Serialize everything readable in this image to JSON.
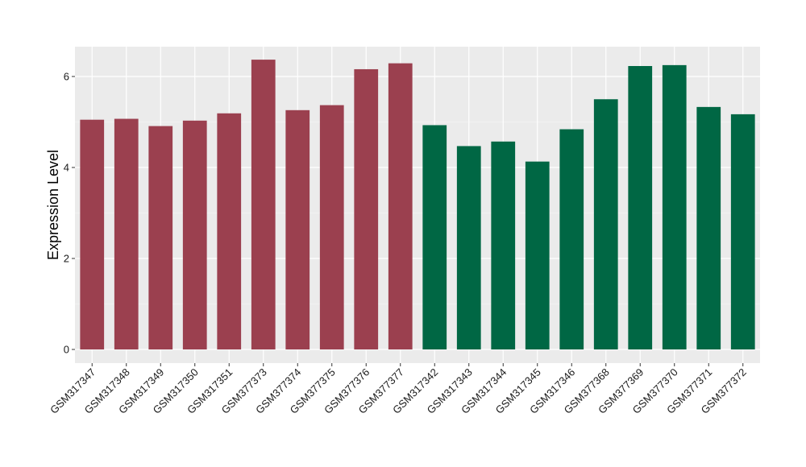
{
  "chart_data": {
    "type": "bar",
    "ylabel": "Expression Level",
    "xlabel": "",
    "title": "",
    "ylim": [
      0,
      6.6
    ],
    "yticks": [
      0,
      2,
      4,
      6
    ],
    "grid": true,
    "legend": "none",
    "categories": [
      "GSM317347",
      "GSM317348",
      "GSM317349",
      "GSM317350",
      "GSM317351",
      "GSM377373",
      "GSM377374",
      "GSM377375",
      "GSM377376",
      "GSM377377",
      "GSM317342",
      "GSM317343",
      "GSM317344",
      "GSM317345",
      "GSM317346",
      "GSM377368",
      "GSM377369",
      "GSM377370",
      "GSM377371",
      "GSM377372"
    ],
    "values": [
      5.05,
      5.07,
      4.91,
      5.03,
      5.19,
      6.37,
      5.26,
      5.37,
      6.16,
      6.29,
      4.93,
      4.47,
      4.57,
      4.13,
      4.84,
      5.5,
      6.23,
      6.25,
      5.33,
      5.17
    ],
    "groups": [
      {
        "color": "#9b404f",
        "count": 10
      },
      {
        "color": "#006744",
        "count": 10
      }
    ]
  }
}
